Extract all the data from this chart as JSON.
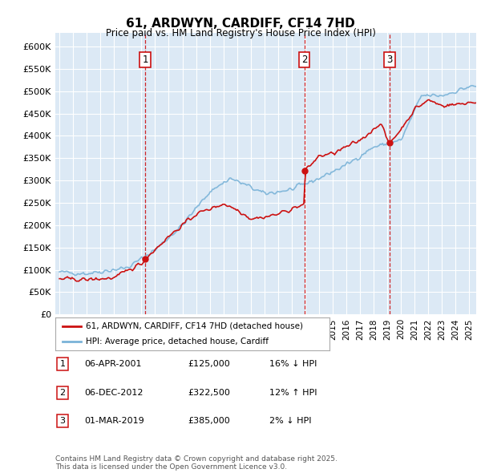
{
  "title": "61, ARDWYN, CARDIFF, CF14 7HD",
  "subtitle": "Price paid vs. HM Land Registry's House Price Index (HPI)",
  "ylabel_ticks": [
    "£0",
    "£50K",
    "£100K",
    "£150K",
    "£200K",
    "£250K",
    "£300K",
    "£350K",
    "£400K",
    "£450K",
    "£500K",
    "£550K",
    "£600K"
  ],
  "ylim": [
    0,
    630000
  ],
  "ytick_values": [
    0,
    50000,
    100000,
    150000,
    200000,
    250000,
    300000,
    350000,
    400000,
    450000,
    500000,
    550000,
    600000
  ],
  "plot_bg_color": "#dce9f5",
  "grid_color": "#ffffff",
  "hpi_color": "#7ab3d8",
  "price_color": "#cc1111",
  "sale_marker_color": "#cc1111",
  "table_rows": [
    {
      "num": "1",
      "date": "06-APR-2001",
      "price": "£125,000",
      "hpi": "16% ↓ HPI"
    },
    {
      "num": "2",
      "date": "06-DEC-2012",
      "price": "£322,500",
      "hpi": "12% ↑ HPI"
    },
    {
      "num": "3",
      "date": "01-MAR-2019",
      "price": "£385,000",
      "hpi": "2% ↓ HPI"
    }
  ],
  "transactions": [
    {
      "label": "1",
      "year": 2001.27,
      "price": 125000
    },
    {
      "label": "2",
      "year": 2012.92,
      "price": 322500
    },
    {
      "label": "3",
      "year": 2019.17,
      "price": 385000
    }
  ],
  "legend_label1": "61, ARDWYN, CARDIFF, CF14 7HD (detached house)",
  "legend_label2": "HPI: Average price, detached house, Cardiff",
  "footer": "Contains HM Land Registry data © Crown copyright and database right 2025.\nThis data is licensed under the Open Government Licence v3.0.",
  "xlim_start": 1994.7,
  "xlim_end": 2025.5
}
